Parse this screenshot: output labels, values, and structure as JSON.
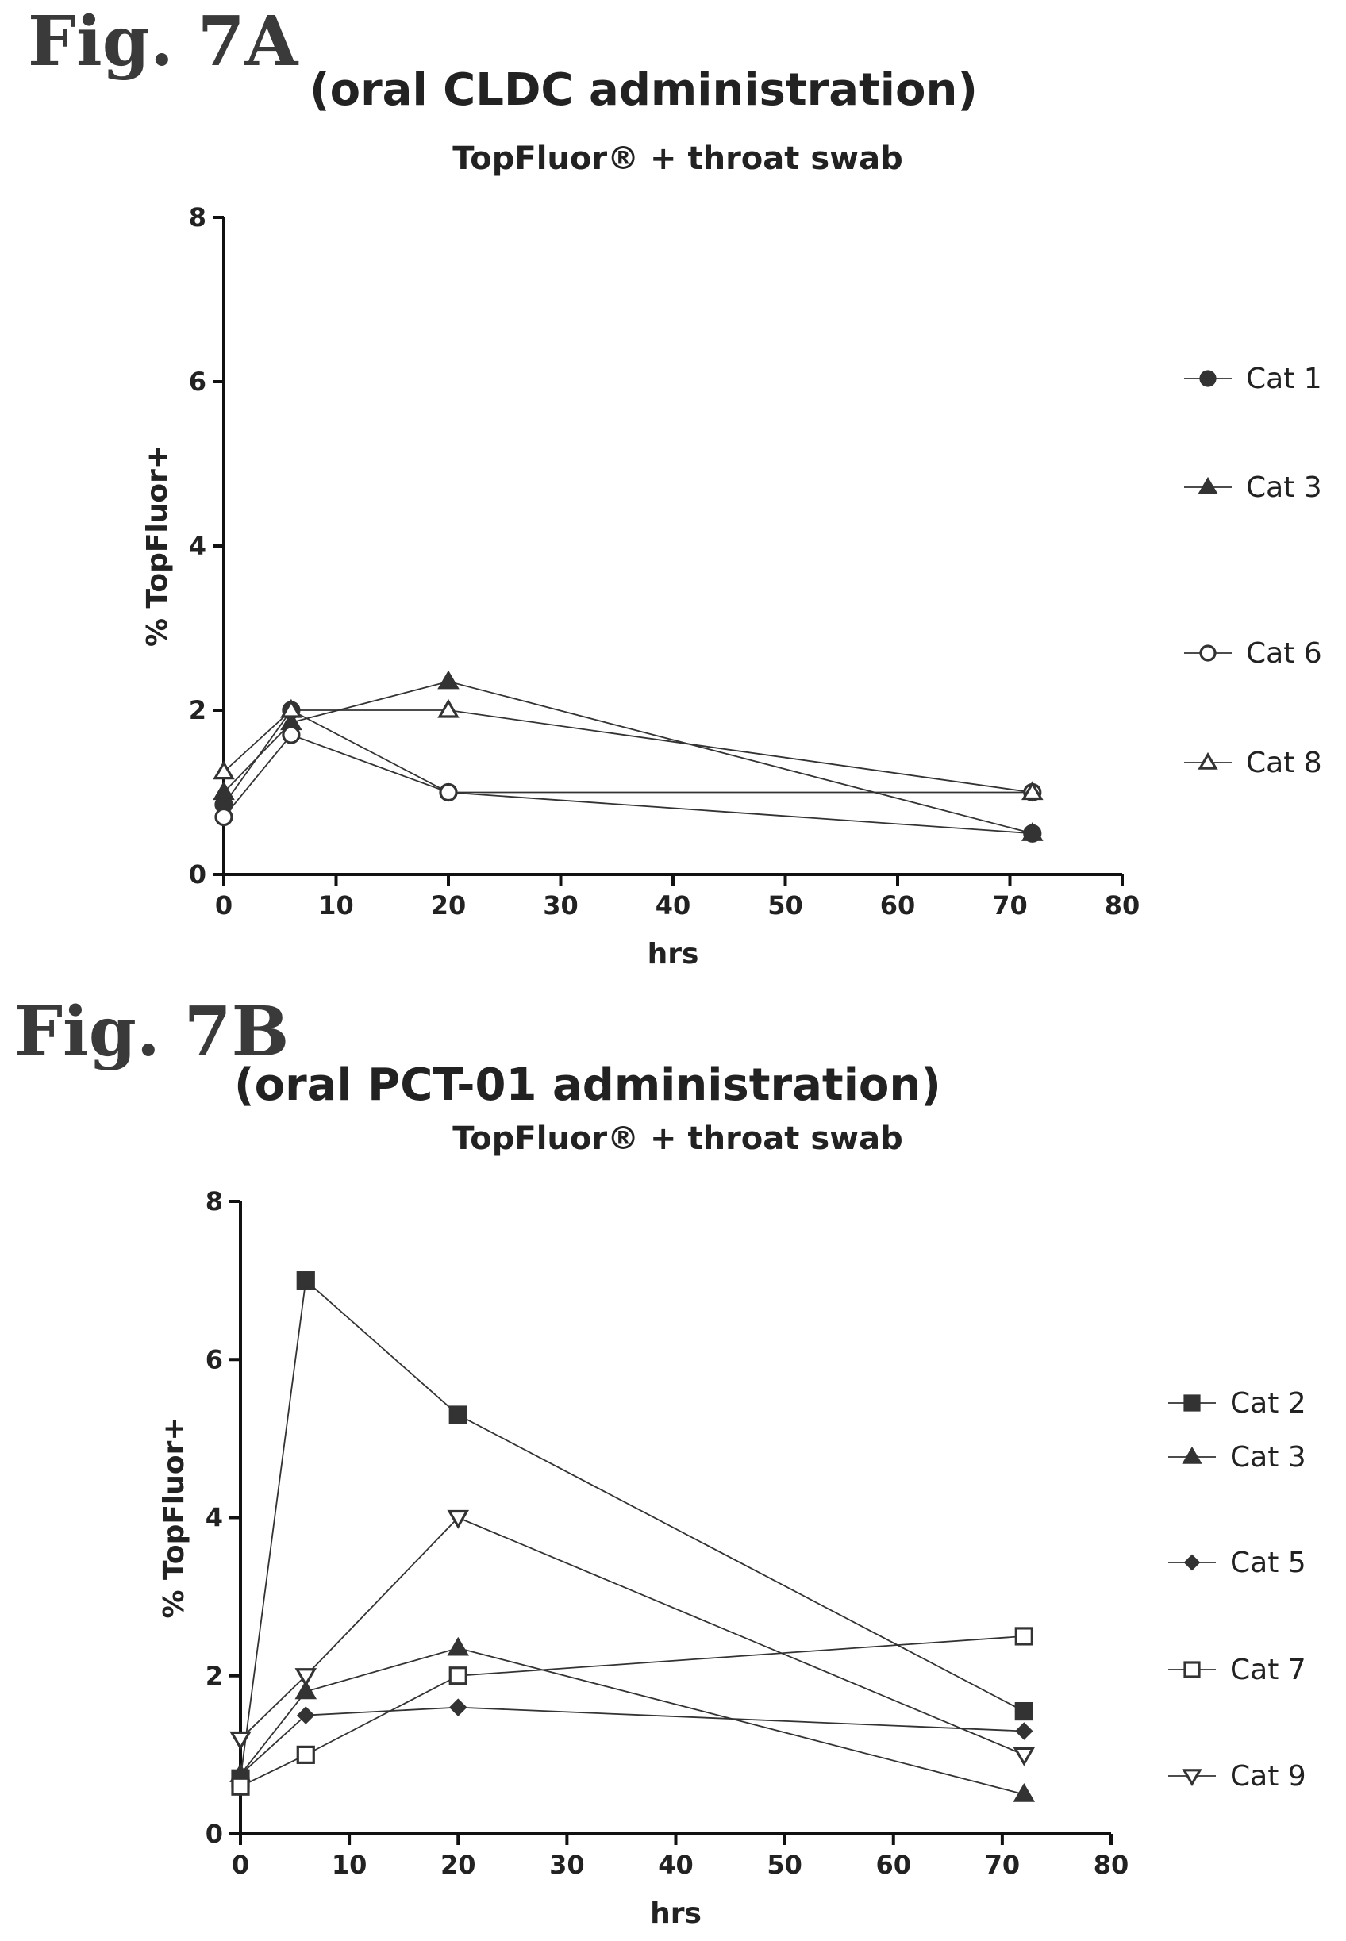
{
  "figures": [
    {
      "label": "Fig. 7A",
      "subtitle": "(oral CLDC administration)"
    },
    {
      "label": "Fig. 7B",
      "subtitle": "(oral PCT-01 administration)"
    }
  ],
  "chart_data": [
    {
      "type": "line",
      "title": "TopFluor® + throat swab",
      "xlabel": "hrs",
      "ylabel": "% TopFluor+",
      "xlim": [
        0,
        80
      ],
      "ylim": [
        0,
        8
      ],
      "xticks": [
        0,
        10,
        20,
        30,
        40,
        50,
        60,
        70,
        80
      ],
      "yticks": [
        0,
        2,
        4,
        6,
        8
      ],
      "grid": false,
      "legend_position": "right",
      "x": [
        0,
        6,
        20,
        72
      ],
      "series": [
        {
          "name": "Cat 1",
          "marker": "circle-filled",
          "values": [
            0.85,
            2.0,
            1.0,
            0.5
          ]
        },
        {
          "name": "Cat 3",
          "marker": "triangle-filled",
          "values": [
            1.0,
            1.85,
            2.35,
            0.5
          ]
        },
        {
          "name": "Cat 6",
          "marker": "circle-open",
          "values": [
            0.7,
            1.7,
            1.0,
            1.0
          ]
        },
        {
          "name": "Cat 8",
          "marker": "triangle-open",
          "values": [
            1.25,
            2.0,
            2.0,
            1.0
          ]
        }
      ]
    },
    {
      "type": "line",
      "title": "TopFluor® + throat swab",
      "xlabel": "hrs",
      "ylabel": "% TopFluor+",
      "xlim": [
        0,
        80
      ],
      "ylim": [
        0,
        8
      ],
      "xticks": [
        0,
        10,
        20,
        30,
        40,
        50,
        60,
        70,
        80
      ],
      "yticks": [
        0,
        2,
        4,
        6,
        8
      ],
      "grid": false,
      "legend_position": "right",
      "x": [
        0,
        6,
        20,
        72
      ],
      "series": [
        {
          "name": "Cat 2",
          "marker": "square-filled",
          "values": [
            0.7,
            7.0,
            5.3,
            1.55
          ]
        },
        {
          "name": "Cat 3",
          "marker": "triangle-filled",
          "values": [
            0.75,
            1.8,
            2.35,
            0.5
          ]
        },
        {
          "name": "Cat 5",
          "marker": "diamond-filled",
          "values": [
            0.75,
            1.5,
            1.6,
            1.3
          ]
        },
        {
          "name": "Cat 7",
          "marker": "square-open",
          "values": [
            0.6,
            1.0,
            2.0,
            2.5
          ]
        },
        {
          "name": "Cat 9",
          "marker": "triangle-down-open",
          "values": [
            1.2,
            2.0,
            4.0,
            1.0
          ]
        }
      ]
    }
  ],
  "colors": {
    "ink": "#333333",
    "axis": "#111111"
  }
}
